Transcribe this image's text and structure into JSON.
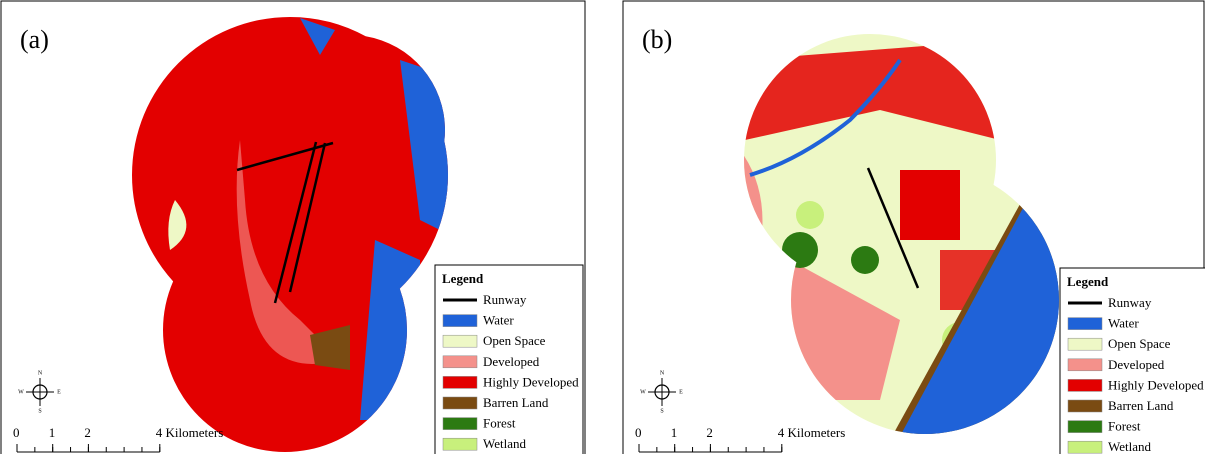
{
  "panels": [
    {
      "label": "(a)",
      "legend": {
        "title": "Legend",
        "items": [
          {
            "name": "Runway",
            "color": "#000000",
            "symbol": "line"
          },
          {
            "name": "Water",
            "color": "#1f62d8",
            "symbol": "patch"
          },
          {
            "name": "Open Space",
            "color": "#eef8c6",
            "symbol": "patch"
          },
          {
            "name": "Developed",
            "color": "#f4918b",
            "symbol": "patch"
          },
          {
            "name": "Highly Developed",
            "color": "#e30000",
            "symbol": "patch"
          },
          {
            "name": "Barren Land",
            "color": "#7a4b12",
            "symbol": "patch"
          },
          {
            "name": "Forest",
            "color": "#2c7a12",
            "symbol": "patch"
          },
          {
            "name": "Wetland",
            "color": "#c8f07c",
            "symbol": "patch"
          }
        ]
      },
      "scale": {
        "ticks": [
          0,
          1,
          2,
          {
            "value": 4,
            "label": "4 Kilometers"
          }
        ]
      },
      "compass": {
        "n": "N",
        "s": "S",
        "e": "E",
        "w": "W"
      }
    },
    {
      "label": "(b)",
      "legend": {
        "title": "Legend",
        "items": [
          {
            "name": "Runway",
            "color": "#000000",
            "symbol": "line"
          },
          {
            "name": "Water",
            "color": "#1f62d8",
            "symbol": "patch"
          },
          {
            "name": "Open Space",
            "color": "#eef8c6",
            "symbol": "patch"
          },
          {
            "name": "Developed",
            "color": "#f4918b",
            "symbol": "patch"
          },
          {
            "name": "Highly Developed",
            "color": "#e30000",
            "symbol": "patch"
          },
          {
            "name": "Barren Land",
            "color": "#7a4b12",
            "symbol": "patch"
          },
          {
            "name": "Forest",
            "color": "#2c7a12",
            "symbol": "patch"
          },
          {
            "name": "Wetland",
            "color": "#c8f07c",
            "symbol": "patch"
          }
        ]
      },
      "scale": {
        "ticks": [
          0,
          1,
          2,
          {
            "value": 4,
            "label": "4 Kilometers"
          }
        ]
      },
      "compass": {
        "n": "N",
        "s": "S",
        "e": "E",
        "w": "W"
      }
    }
  ]
}
